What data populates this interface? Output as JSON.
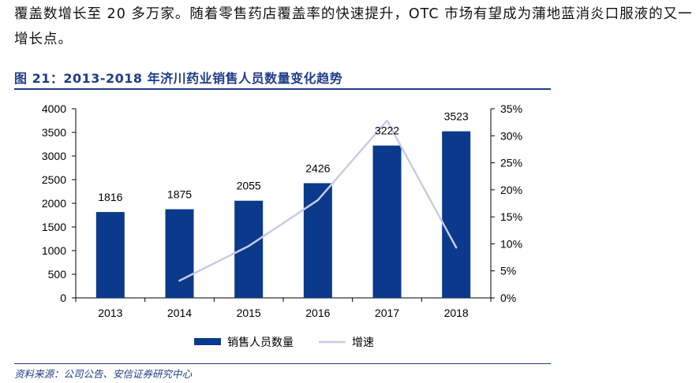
{
  "intro_text": "覆盖数增长至 20 多万家。随着零售药店覆盖率的快速提升，OTC 市场有望成为蒲地蓝消炎口服液的又一增长点。",
  "figure_title": "图 21：2013-2018 年济川药业销售人员数量变化趋势",
  "source": "资料来源：公司公告、安信证券研究中心",
  "chart_data": {
    "type": "bar",
    "categories": [
      "2013",
      "2014",
      "2015",
      "2016",
      "2017",
      "2018"
    ],
    "series": [
      {
        "name": "销售人员数量",
        "type": "bar",
        "axis": "left",
        "values": [
          1816,
          1875,
          2055,
          2426,
          3222,
          3523
        ],
        "color": "#0b3a8c"
      },
      {
        "name": "增速",
        "type": "line",
        "axis": "right",
        "values": [
          null,
          3.2,
          9.6,
          18.1,
          32.8,
          9.3
        ],
        "color": "#c9cbe6"
      }
    ],
    "data_labels": [
      "1816",
      "1875",
      "2055",
      "2426",
      "3222",
      "3523"
    ],
    "y_left": {
      "ylim": [
        0,
        4000
      ],
      "ticks": [
        "0",
        "500",
        "1000",
        "1500",
        "2000",
        "2500",
        "3000",
        "3500",
        "4000"
      ]
    },
    "y_right": {
      "ylim": [
        0,
        35
      ],
      "ticks": [
        "0%",
        "5%",
        "10%",
        "15%",
        "20%",
        "25%",
        "30%",
        "35%"
      ]
    },
    "legend_position": "bottom"
  }
}
